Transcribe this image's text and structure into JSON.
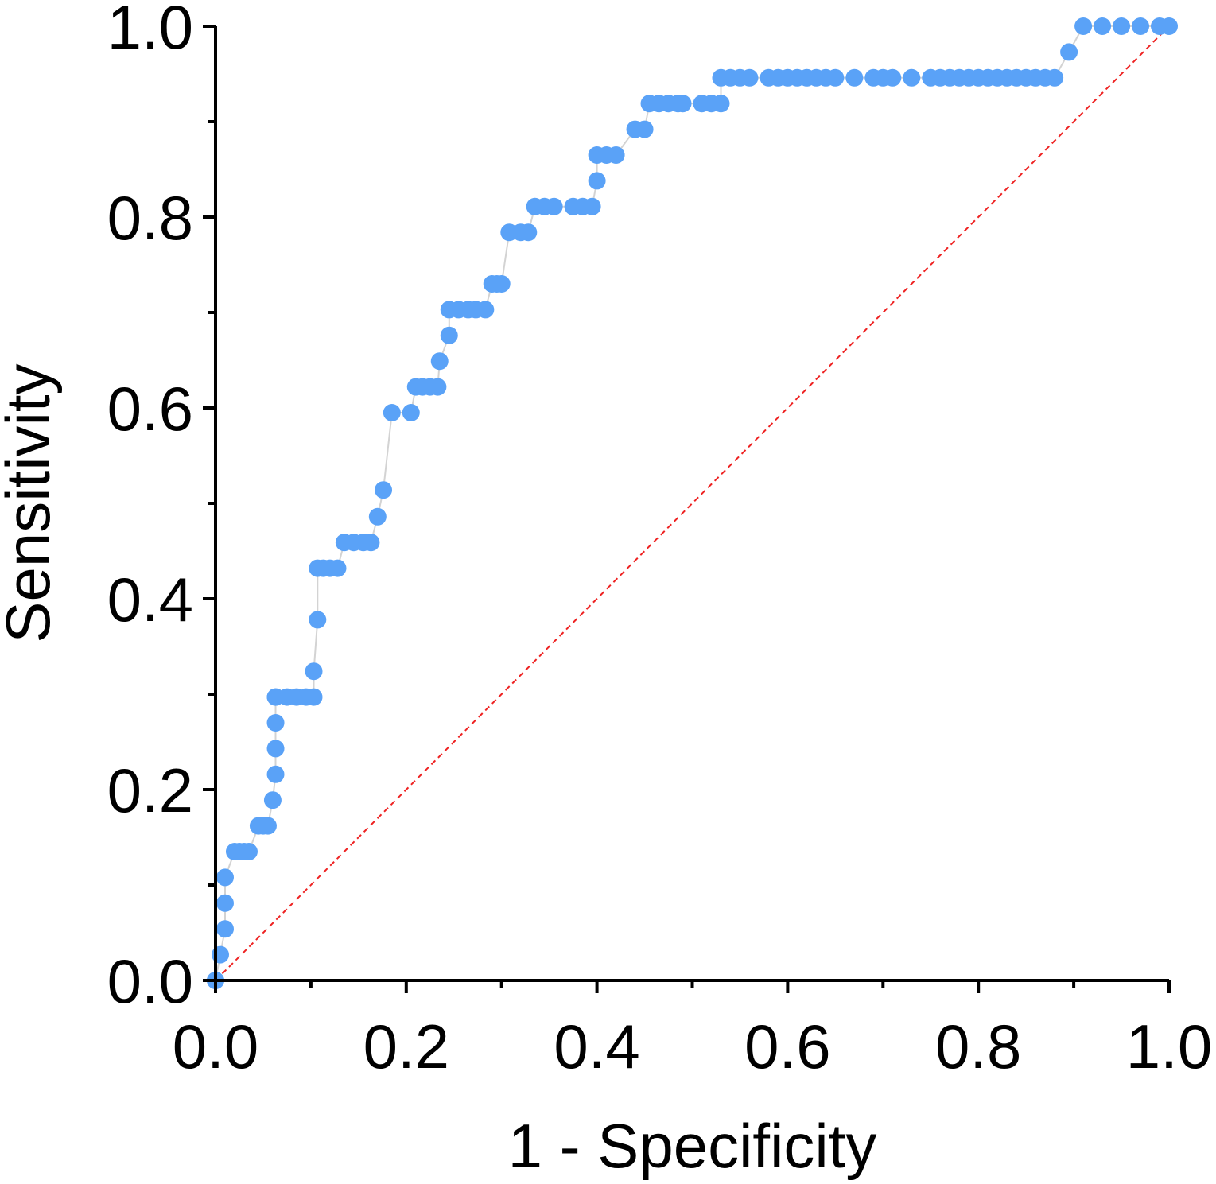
{
  "chart_data": {
    "type": "scatter",
    "xlabel": "1 - Specificity",
    "ylabel": "Sensitivity",
    "xlim": [
      0,
      1
    ],
    "ylim": [
      0,
      1
    ],
    "x_ticks": [
      "0.0",
      "0.2",
      "0.4",
      "0.6",
      "0.8",
      "1.0"
    ],
    "y_ticks": [
      "0.0",
      "0.2",
      "0.4",
      "0.6",
      "0.8",
      "1.0"
    ],
    "x_tick_values": [
      0,
      0.2,
      0.4,
      0.6,
      0.8,
      1.0
    ],
    "y_tick_values": [
      0,
      0.2,
      0.4,
      0.6,
      0.8,
      1.0
    ],
    "grid": false,
    "colors": {
      "points": "#5aa2f7",
      "line": "#d3d3d3",
      "reference": "#ee2222"
    },
    "reference_line": {
      "style": "dashed",
      "from": [
        0,
        0
      ],
      "to": [
        1,
        1
      ]
    },
    "series": [
      {
        "x": [
          0.0,
          0.0,
          0.005,
          0.01,
          0.01,
          0.01,
          0.02,
          0.025,
          0.03,
          0.035,
          0.045,
          0.05,
          0.055,
          0.06,
          0.063,
          0.063,
          0.063,
          0.063,
          0.063,
          0.075,
          0.085,
          0.095,
          0.103,
          0.103,
          0.107,
          0.107,
          0.113,
          0.12,
          0.128,
          0.135,
          0.145,
          0.155,
          0.163,
          0.17,
          0.176,
          0.185,
          0.205,
          0.21,
          0.217,
          0.225,
          0.233,
          0.235,
          0.245,
          0.245,
          0.255,
          0.265,
          0.273,
          0.283,
          0.29,
          0.295,
          0.3,
          0.308,
          0.32,
          0.328,
          0.335,
          0.345,
          0.355,
          0.375,
          0.385,
          0.395,
          0.4,
          0.4,
          0.41,
          0.42,
          0.44,
          0.45,
          0.455,
          0.465,
          0.475,
          0.485,
          0.49,
          0.51,
          0.52,
          0.53,
          0.53,
          0.54,
          0.55,
          0.56,
          0.58,
          0.59,
          0.6,
          0.61,
          0.62,
          0.63,
          0.64,
          0.65,
          0.67,
          0.69,
          0.7,
          0.71,
          0.73,
          0.75,
          0.76,
          0.77,
          0.78,
          0.79,
          0.8,
          0.81,
          0.82,
          0.83,
          0.84,
          0.85,
          0.86,
          0.87,
          0.88,
          0.895,
          0.91,
          0.93,
          0.95,
          0.97,
          0.99,
          1.0
        ],
        "y": [
          0.0,
          0.0,
          0.027,
          0.054,
          0.081,
          0.108,
          0.135,
          0.135,
          0.135,
          0.135,
          0.162,
          0.162,
          0.162,
          0.189,
          0.216,
          0.243,
          0.27,
          0.297,
          0.297,
          0.297,
          0.297,
          0.297,
          0.297,
          0.324,
          0.378,
          0.432,
          0.432,
          0.432,
          0.432,
          0.459,
          0.459,
          0.459,
          0.459,
          0.486,
          0.514,
          0.595,
          0.595,
          0.622,
          0.622,
          0.622,
          0.622,
          0.649,
          0.676,
          0.703,
          0.703,
          0.703,
          0.703,
          0.703,
          0.73,
          0.73,
          0.73,
          0.784,
          0.784,
          0.784,
          0.811,
          0.811,
          0.811,
          0.811,
          0.811,
          0.811,
          0.838,
          0.865,
          0.865,
          0.865,
          0.892,
          0.892,
          0.919,
          0.919,
          0.919,
          0.919,
          0.919,
          0.919,
          0.919,
          0.919,
          0.946,
          0.946,
          0.946,
          0.946,
          0.946,
          0.946,
          0.946,
          0.946,
          0.946,
          0.946,
          0.946,
          0.946,
          0.946,
          0.946,
          0.946,
          0.946,
          0.946,
          0.946,
          0.946,
          0.946,
          0.946,
          0.946,
          0.946,
          0.946,
          0.946,
          0.946,
          0.946,
          0.946,
          0.946,
          0.946,
          0.946,
          0.973,
          1.0,
          1.0,
          1.0,
          1.0,
          1.0,
          1.0
        ]
      }
    ]
  }
}
